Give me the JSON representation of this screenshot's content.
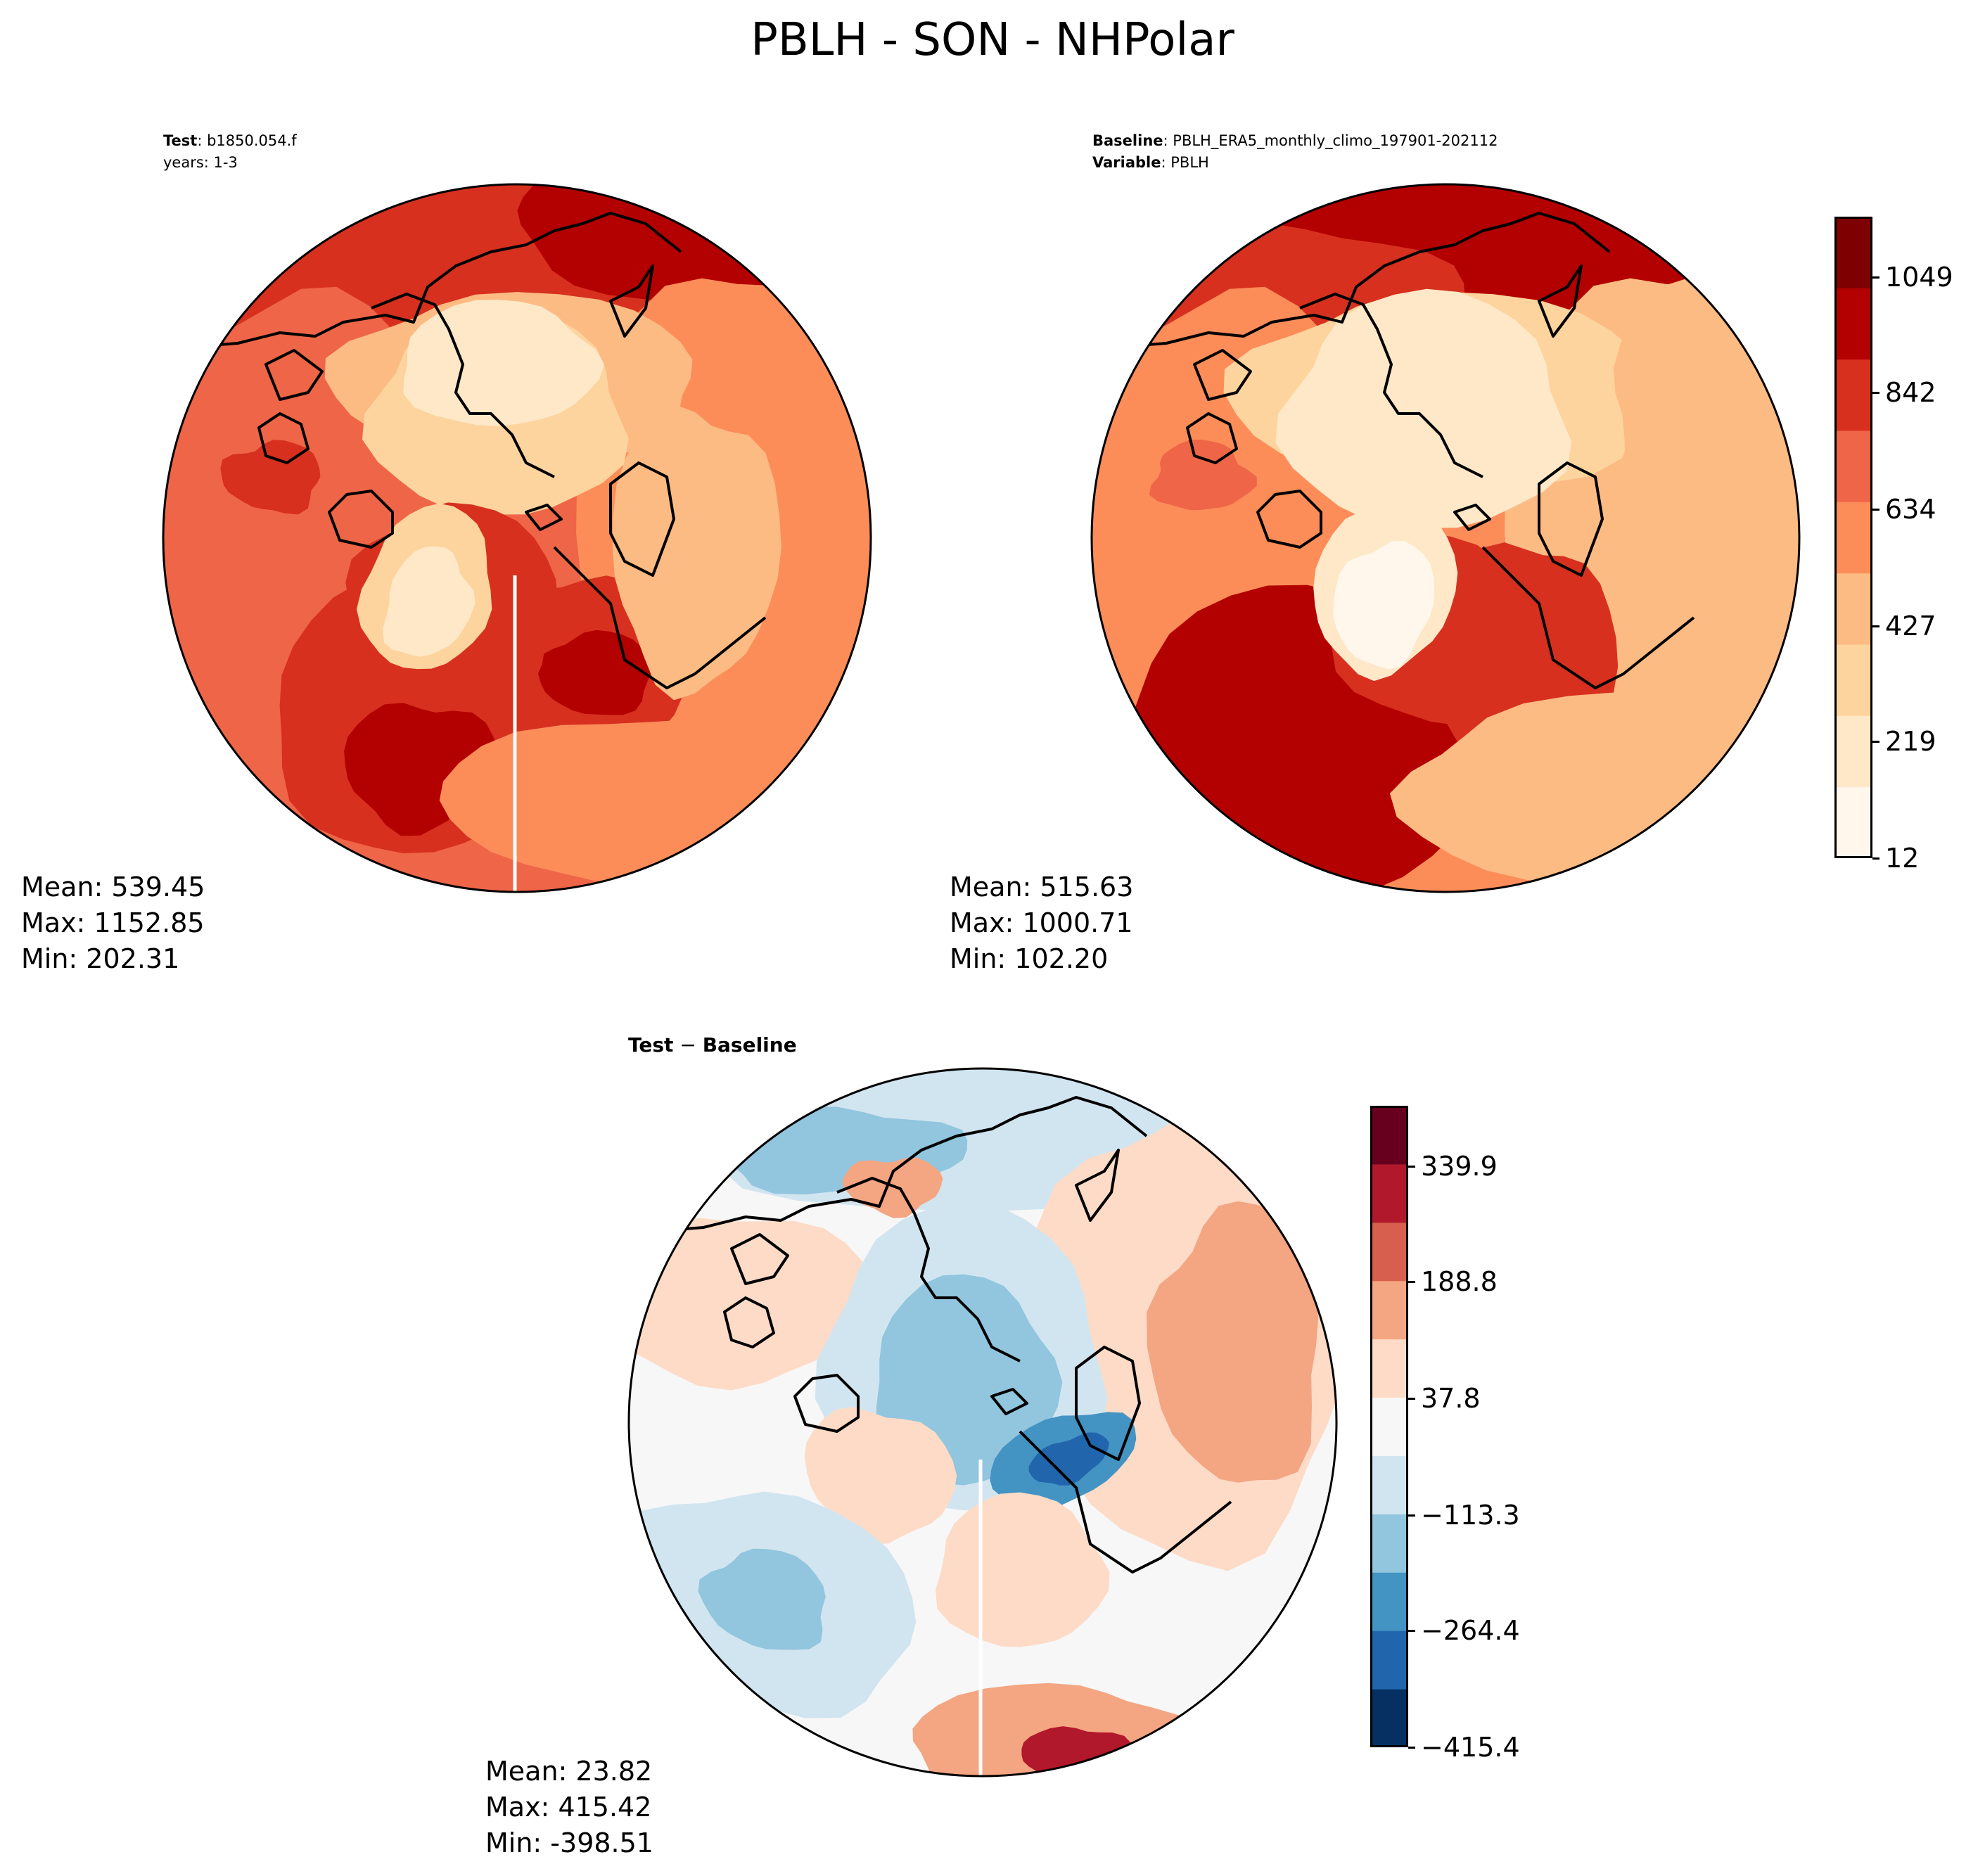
{
  "title": "PBLH - SON - NHPolar",
  "panels": {
    "test": {
      "label_bold": "Test",
      "label_value": "b1850.054.f",
      "line2": "years: 1-3",
      "mean": "Mean: 539.45",
      "max": "Max: 1152.85",
      "min": "Min: 202.31"
    },
    "baseline": {
      "label_bold": "Baseline",
      "label_value": "PBLH_ERA5_monthly_climo_197901-202112",
      "line2_bold": "Variable",
      "line2_value": "PBLH",
      "mean": "Mean: 515.63",
      "max": "Max: 1000.71",
      "min": "Min: 102.20"
    },
    "diff": {
      "label_a": "Test",
      "label_minus": " − ",
      "label_b": "Baseline",
      "mean": "Mean: 23.82",
      "max": "Max: 415.42",
      "min": "Min: -398.51"
    }
  },
  "chart_data": [
    {
      "type": "heatmap",
      "panel": "Test",
      "projection": "north polar stereographic",
      "variable": "PBLH",
      "mean": 539.45,
      "max": 1152.85,
      "min": 202.31,
      "colormap": "OrRd",
      "colorbar_ticks": [
        12,
        219,
        427,
        634,
        842,
        1049
      ]
    },
    {
      "type": "heatmap",
      "panel": "Baseline",
      "projection": "north polar stereographic",
      "variable": "PBLH",
      "mean": 515.63,
      "max": 1000.71,
      "min": 102.2,
      "colormap": "OrRd",
      "colorbar_ticks": [
        12,
        219,
        427,
        634,
        842,
        1049
      ],
      "colorbar_tick_labels": [
        "12",
        "219",
        "427",
        "634",
        "842",
        "1049"
      ]
    },
    {
      "type": "heatmap",
      "panel": "Test − Baseline",
      "projection": "north polar stereographic",
      "mean": 23.82,
      "max": 415.42,
      "min": -398.51,
      "colormap": "RdBu_r (diverging)",
      "colorbar_ticks": [
        -415.4,
        -264.4,
        -113.3,
        37.8,
        188.8,
        339.9
      ],
      "colorbar_tick_labels": [
        "−415.4",
        "−264.4",
        "−113.3",
        "37.8",
        "188.8",
        "339.9"
      ]
    }
  ],
  "colors": {
    "seq": [
      "#fff7ec",
      "#fee8c8",
      "#fdd49e",
      "#fdbb84",
      "#fc8d59",
      "#ef6548",
      "#d7301f",
      "#b30000",
      "#7f0000"
    ],
    "div": [
      "#053061",
      "#2166ac",
      "#4393c3",
      "#92c5de",
      "#d1e5f0",
      "#f7f7f7",
      "#fddbc7",
      "#f4a582",
      "#d6604d",
      "#b2182b",
      "#67001f"
    ]
  }
}
